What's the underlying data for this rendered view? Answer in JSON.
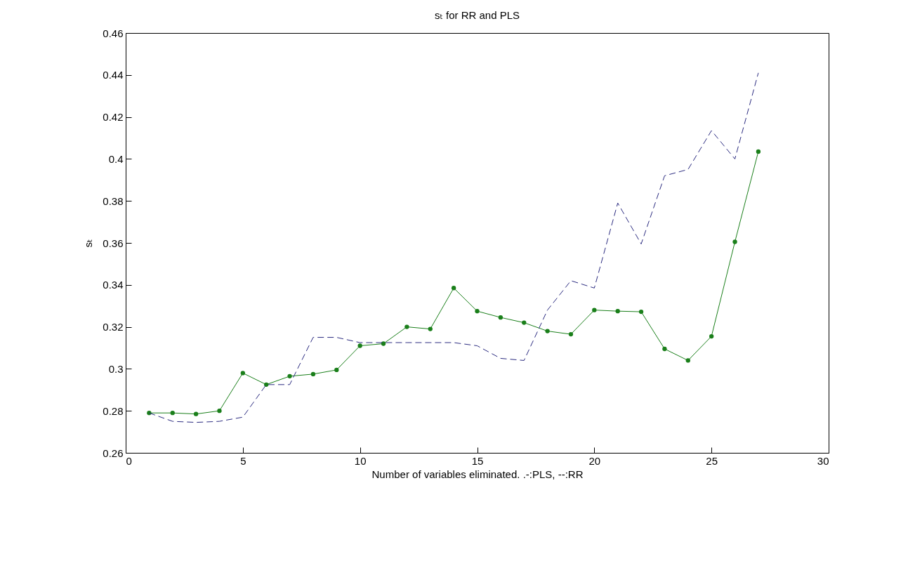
{
  "chart_data": {
    "type": "line",
    "title": "sₜ for RR and PLS",
    "xlabel": "Number of variables eliminated. .-:PLS, --:RR",
    "ylabel": "sₜ",
    "x": [
      1,
      2,
      3,
      4,
      5,
      6,
      7,
      8,
      9,
      10,
      11,
      12,
      13,
      14,
      15,
      16,
      17,
      18,
      19,
      20,
      21,
      22,
      23,
      24,
      25,
      26,
      27
    ],
    "series": [
      {
        "color": "#1a7f1a",
        "marker": "circle",
        "line_style": "solid",
        "values": [
          0.279,
          0.279,
          0.2785,
          0.28,
          0.298,
          0.2925,
          0.2965,
          0.2975,
          0.2995,
          0.311,
          0.312,
          0.32,
          0.319,
          0.3385,
          0.3275,
          0.3245,
          0.322,
          0.318,
          0.3165,
          0.328,
          0.3275,
          0.3272,
          0.3095,
          0.304,
          0.3155,
          0.3605,
          0.4035
        ]
      },
      {
        "color": "#2b2b80",
        "marker": "none",
        "line_style": "dashed",
        "values": [
          0.279,
          0.275,
          0.2745,
          0.275,
          0.277,
          0.2925,
          0.2925,
          0.315,
          0.315,
          0.3125,
          0.3125,
          0.3125,
          0.3125,
          0.3125,
          0.311,
          0.305,
          0.304,
          0.328,
          0.342,
          0.3385,
          0.379,
          0.3595,
          0.392,
          0.395,
          0.4135,
          0.4,
          0.441
        ]
      }
    ],
    "xlim": [
      0,
      30
    ],
    "xticks": [
      0,
      5,
      10,
      15,
      20,
      25,
      30
    ],
    "ylim": [
      0.26,
      0.46
    ],
    "yticks": [
      0.26,
      0.28,
      0.3,
      0.32,
      0.34,
      0.36,
      0.38,
      0.4,
      0.42,
      0.44,
      0.46
    ],
    "grid": false
  }
}
